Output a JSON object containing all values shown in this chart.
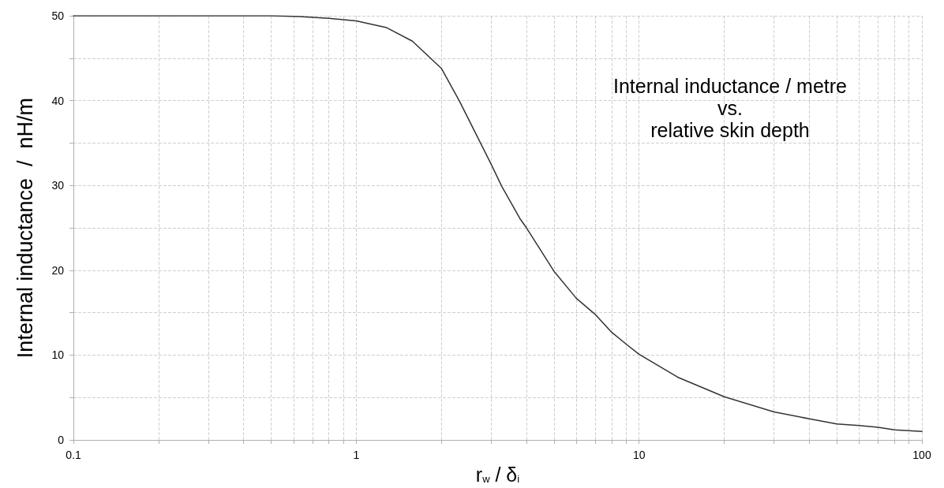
{
  "chart_data": {
    "type": "line",
    "title": "Internal inductance / metre\nvs.\nrelative skin depth",
    "xlabel": "r$_{w}$ / δ$_{i}$",
    "ylabel": "Internal inductance  /  nH/m",
    "x": [
      0.1,
      0.3,
      0.5,
      0.63,
      0.8,
      1,
      1.28,
      1.58,
      2,
      2.32,
      2.75,
      3,
      3.27,
      3.79,
      4,
      5,
      6,
      7,
      8,
      9,
      10,
      13.7,
      20,
      30,
      40,
      50,
      60,
      70,
      80,
      100
    ],
    "series": [
      {
        "color": "#333333",
        "values": [
          50,
          50,
          50,
          49.9,
          49.7,
          49.4,
          48.6,
          47.0,
          43.8,
          39.9,
          35.0,
          32.5,
          29.9,
          26.1,
          25.0,
          19.9,
          16.7,
          14.8,
          12.7,
          11.3,
          10.1,
          7.4,
          5.1,
          3.3,
          2.5,
          1.9,
          1.7,
          1.5,
          1.2,
          1.0
        ]
      }
    ],
    "log": "x",
    "xlim": [
      0.1,
      100
    ],
    "xticks": [
      0.1,
      {
        "value": 0.2,
        "label": null
      },
      {
        "value": 0.3,
        "label": null
      },
      {
        "value": 0.4,
        "label": null
      },
      {
        "value": 0.5,
        "label": null
      },
      {
        "value": 0.6,
        "label": null
      },
      {
        "value": 0.7,
        "label": null
      },
      {
        "value": 0.8,
        "label": null
      },
      {
        "value": 0.9,
        "label": null
      },
      1,
      {
        "value": 2,
        "label": null
      },
      {
        "value": 3,
        "label": null
      },
      {
        "value": 4,
        "label": null
      },
      {
        "value": 5,
        "label": null
      },
      {
        "value": 6,
        "label": null
      },
      {
        "value": 7,
        "label": null
      },
      {
        "value": 8,
        "label": null
      },
      {
        "value": 9,
        "label": null
      },
      10,
      {
        "value": 20,
        "label": null
      },
      {
        "value": 30,
        "label": null
      },
      {
        "value": 40,
        "label": null
      },
      {
        "value": 50,
        "label": null
      },
      {
        "value": 60,
        "label": null
      },
      {
        "value": 70,
        "label": null
      },
      {
        "value": 80,
        "label": null
      },
      {
        "value": 90,
        "label": null
      },
      100
    ],
    "ylim": [
      0,
      50
    ],
    "yticks": [
      0,
      {
        "value": 5,
        "label": null
      },
      10,
      {
        "value": 15,
        "label": null
      },
      20,
      {
        "value": 25,
        "label": null
      },
      30,
      {
        "value": 35,
        "label": null
      },
      40,
      {
        "value": 45,
        "label": null
      },
      50
    ],
    "grid": true,
    "marker": "none",
    "line_style": "solid"
  }
}
